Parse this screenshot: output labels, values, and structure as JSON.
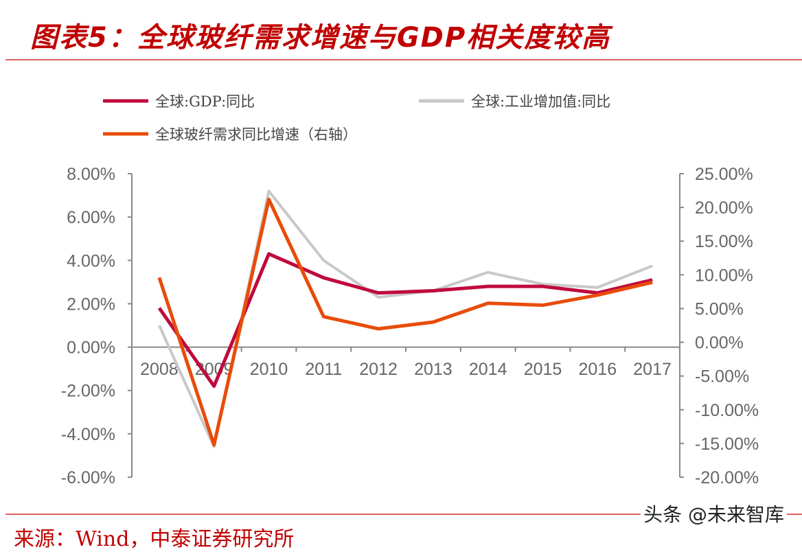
{
  "title": "图表5：全球玻纤需求增速与GDP相关度较高",
  "source": "来源：Wind，中泰证券研究所",
  "watermark": "头条 @未来智库",
  "chart_data": {
    "type": "line",
    "categories": [
      "2008",
      "2009",
      "2010",
      "2011",
      "2012",
      "2013",
      "2014",
      "2015",
      "2016",
      "2017"
    ],
    "left_axis": {
      "range": [
        -6,
        8
      ],
      "ticks": [
        "8.00%",
        "6.00%",
        "4.00%",
        "2.00%",
        "0.00%",
        "-2.00%",
        "-4.00%",
        "-6.00%"
      ],
      "tick_values": [
        8,
        6,
        4,
        2,
        0,
        -2,
        -4,
        -6
      ]
    },
    "right_axis": {
      "range": [
        -20,
        25
      ],
      "ticks": [
        "25.00%",
        "20.00%",
        "15.00%",
        "10.00%",
        "5.00%",
        "0.00%",
        "-5.00%",
        "-10.00%",
        "-15.00%",
        "-20.00%"
      ],
      "tick_values": [
        25,
        20,
        15,
        10,
        5,
        0,
        -5,
        -10,
        -15,
        -20
      ]
    },
    "legend_position": "top",
    "series": [
      {
        "name": "全球:GDP:同比",
        "axis": "left",
        "color": "#c0093c",
        "values": [
          1.8,
          -1.8,
          4.3,
          3.2,
          2.5,
          2.6,
          2.8,
          2.8,
          2.5,
          3.1
        ]
      },
      {
        "name": "全球:工业增加值:同比",
        "axis": "left",
        "color": "#c8c8c8",
        "values": [
          1.0,
          -4.6,
          7.2,
          4.0,
          2.3,
          2.6,
          3.45,
          2.9,
          2.75,
          3.75
        ]
      },
      {
        "name": "全球玻纤需求同比增速（右轴）",
        "axis": "right",
        "color": "#e84c0a",
        "values": [
          9.6,
          -15.2,
          21.2,
          3.8,
          2.0,
          3.0,
          5.8,
          5.5,
          7.0,
          8.9
        ]
      }
    ]
  }
}
